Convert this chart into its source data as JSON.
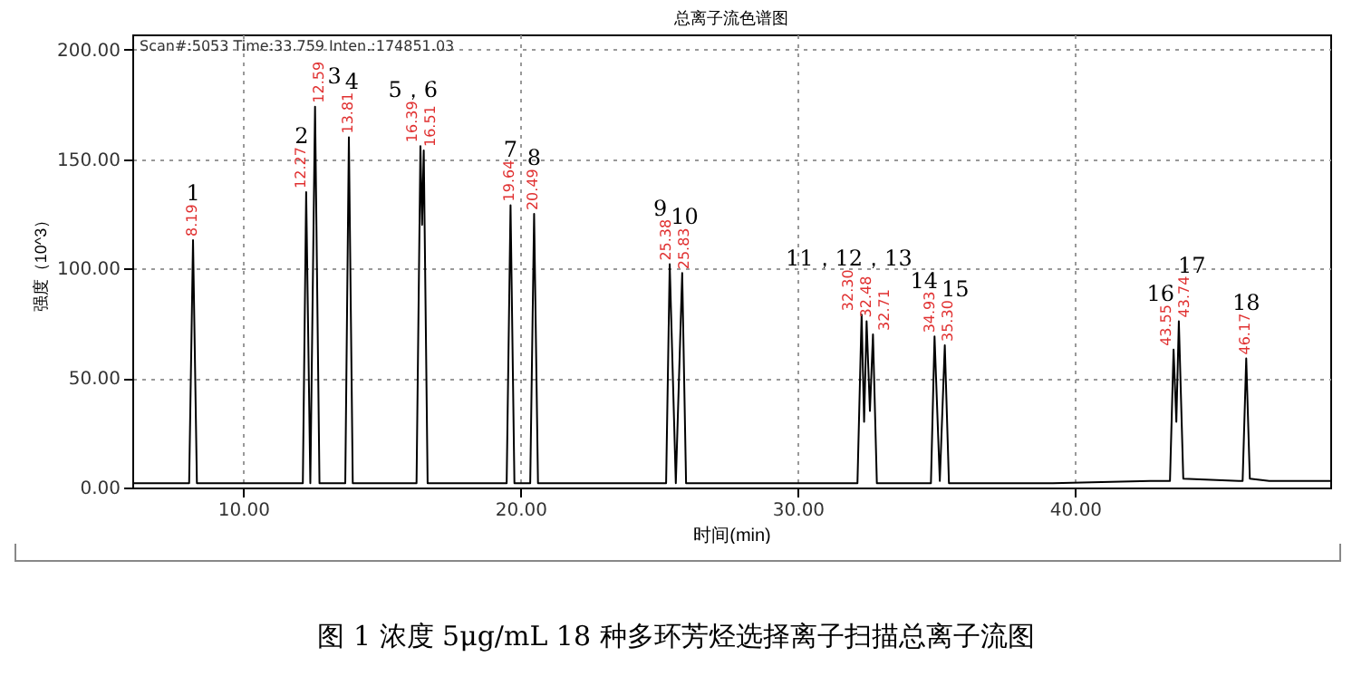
{
  "chart_data": {
    "type": "line",
    "title": "总离子流色谱图",
    "xlabel": "时间(min)",
    "ylabel": "强度（10^3）",
    "xlim": [
      6,
      49.2
    ],
    "ylim": [
      0,
      207
    ],
    "xticks": [
      {
        "value": 10,
        "label": "10.00"
      },
      {
        "value": 20,
        "label": "20.00"
      },
      {
        "value": 30,
        "label": "30.00"
      },
      {
        "value": 40,
        "label": "40.00"
      }
    ],
    "yticks": [
      {
        "value": 0,
        "label": "0.00"
      },
      {
        "value": 50,
        "label": "50.00"
      },
      {
        "value": 100,
        "label": "100.00"
      },
      {
        "value": 150,
        "label": "150.00"
      },
      {
        "value": 200,
        "label": "200.00"
      }
    ],
    "grid": true,
    "series": [
      {
        "color": "#000000",
        "x": [
          6,
          8.05,
          8.19,
          8.33,
          12.15,
          12.27,
          12.42,
          12.59,
          12.75,
          13.68,
          13.81,
          13.95,
          16.25,
          16.39,
          16.45,
          16.51,
          16.65,
          19.5,
          19.64,
          19.78,
          20.35,
          20.49,
          20.63,
          25.25,
          25.38,
          25.6,
          25.83,
          25.97,
          32.15,
          32.3,
          32.39,
          32.48,
          32.6,
          32.71,
          32.85,
          34.3,
          34.8,
          34.93,
          35.12,
          35.3,
          35.45,
          39.2,
          42.7,
          43.42,
          43.55,
          43.65,
          43.74,
          43.9,
          45.9,
          46.04,
          46.17,
          46.3,
          47,
          49.2
        ],
        "values": [
          2,
          2,
          113,
          2,
          2,
          135,
          2,
          174,
          2,
          2,
          160,
          2,
          2,
          156,
          120,
          154,
          2,
          2,
          129,
          2,
          2,
          125,
          2,
          2,
          102,
          2,
          98,
          2,
          2,
          79,
          30,
          76,
          35,
          70,
          2,
          2,
          2,
          69,
          3,
          65,
          2,
          2,
          3,
          3,
          63,
          30,
          76,
          4,
          3,
          3,
          59,
          4,
          3,
          3
        ]
      }
    ],
    "annotations": [
      "Scan#:5053  Time:33.759  Inten.:174851.03",
      {
        "text": "8.19",
        "x": 8.19,
        "y": 113
      },
      {
        "text": "1",
        "x": 8.19,
        "y": 113
      },
      {
        "text": "12.27",
        "x": 12.27,
        "y": 135
      },
      {
        "text": "2",
        "x": 12.27,
        "y": 135
      },
      {
        "text": "12.59",
        "x": 12.59,
        "y": 174
      },
      {
        "text": "3",
        "x": 12.59,
        "y": 174
      },
      {
        "text": "13.81",
        "x": 13.81,
        "y": 160
      },
      {
        "text": "4",
        "x": 13.81,
        "y": 160
      },
      {
        "text": "16.39",
        "x": 16.39,
        "y": 156
      },
      {
        "text": "5，6",
        "x": 16.39,
        "y": 156
      },
      {
        "text": "16.51",
        "x": 16.51,
        "y": 154
      },
      {
        "text": "19.64",
        "x": 19.64,
        "y": 129
      },
      {
        "text": "7",
        "x": 19.64,
        "y": 129
      },
      {
        "text": "20.49",
        "x": 20.49,
        "y": 125
      },
      {
        "text": "8",
        "x": 20.49,
        "y": 125
      },
      {
        "text": "25.38",
        "x": 25.38,
        "y": 102
      },
      {
        "text": "9",
        "x": 25.38,
        "y": 102
      },
      {
        "text": "25.83",
        "x": 25.83,
        "y": 98
      },
      {
        "text": "10",
        "x": 25.83,
        "y": 98
      },
      {
        "text": "32.30",
        "x": 32.3,
        "y": 79
      },
      {
        "text": "11，12，13",
        "x": 32.3,
        "y": 79
      },
      {
        "text": "32.48",
        "x": 32.48,
        "y": 76
      },
      {
        "text": "32.71",
        "x": 32.71,
        "y": 70
      },
      {
        "text": "34.93",
        "x": 34.93,
        "y": 69
      },
      {
        "text": "14",
        "x": 34.93,
        "y": 69
      },
      {
        "text": "35.30",
        "x": 35.3,
        "y": 65
      },
      {
        "text": "15",
        "x": 35.3,
        "y": 65
      },
      {
        "text": "43.55",
        "x": 43.55,
        "y": 63
      },
      {
        "text": "16",
        "x": 43.55,
        "y": 63
      },
      {
        "text": "43.74",
        "x": 43.74,
        "y": 76
      },
      {
        "text": "17",
        "x": 43.74,
        "y": 76
      },
      {
        "text": "46.17",
        "x": 46.17,
        "y": 59
      },
      {
        "text": "18",
        "x": 46.17,
        "y": 59
      },
      "图 1  浓度 5μg/mL 18 种多环芳烃选择离子扫描总离子流图"
    ]
  }
}
